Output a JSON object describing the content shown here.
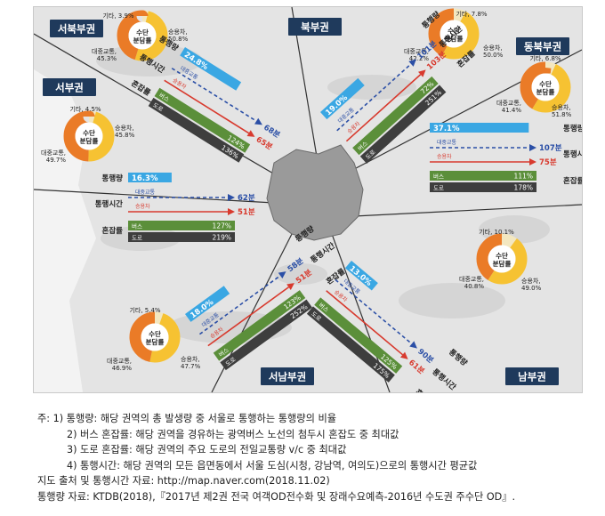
{
  "regions": {
    "northwest": {
      "name": "서북부권",
      "mode_share": {
        "center": "수단\n분담률",
        "car": "승용차,\n50.8%",
        "transit": "대중교통,\n45.3%",
        "other": "기타, 3.9%",
        "car_pct": 50.8,
        "transit_pct": 45.3,
        "other_pct": 3.9
      },
      "commute_label": "통행량",
      "commute_share": "24.8%",
      "commute_pct": 24.8,
      "time_label": "통행시간",
      "transit_label": "대중교통",
      "transit_time": "68분",
      "car_label": "승용차",
      "car_time": "65분",
      "congestion_label": "혼잡률",
      "bus_label": "버스",
      "bus_value": "124%",
      "road_label": "도로",
      "road_value": "136%"
    },
    "north": {
      "name": "북부권",
      "mode_share": {
        "center": "수단\n분담률",
        "car": "승용차,\n50.0%",
        "transit": "대중교통,\n42.2%",
        "other": "기타, 7.8%",
        "car_pct": 50.0,
        "transit_pct": 42.2,
        "other_pct": 7.8
      },
      "commute_label": "통행량",
      "commute_share": "19.0%",
      "commute_pct": 19.0,
      "time_label": "통행시간",
      "transit_label": "대중교통",
      "transit_time": "101분",
      "car_label": "승용차",
      "car_time": "103분",
      "congestion_label": "혼잡률",
      "bus_label": "버스",
      "bus_value": "72%",
      "road_label": "도로",
      "road_value": "251%"
    },
    "northeast": {
      "name": "동북부권",
      "mode_share": {
        "center": "수단\n분담률",
        "car": "승용차,\n51.8%",
        "transit": "대중교통,\n41.4%",
        "other": "기타, 6.8%",
        "car_pct": 51.8,
        "transit_pct": 41.4,
        "other_pct": 6.8
      },
      "commute_label": "통행량",
      "commute_share": "37.1%",
      "commute_pct": 37.1,
      "time_label": "통행시간",
      "transit_label": "대중교통",
      "transit_time": "107분",
      "car_label": "승용차",
      "car_time": "75분",
      "congestion_label": "혼잡률",
      "bus_label": "버스",
      "bus_value": "111%",
      "road_label": "도로",
      "road_value": "178%"
    },
    "west": {
      "name": "서부권",
      "mode_share": {
        "center": "수단\n분담률",
        "car": "승용차,\n45.8%",
        "transit": "대중교통,\n49.7%",
        "other": "기타, 4.5%",
        "car_pct": 45.8,
        "transit_pct": 49.7,
        "other_pct": 4.5
      },
      "commute_label": "통행량",
      "commute_share": "16.3%",
      "commute_pct": 16.3,
      "time_label": "통행시간",
      "transit_label": "대중교통",
      "transit_time": "62분",
      "car_label": "승용차",
      "car_time": "51분",
      "congestion_label": "혼잡률",
      "bus_label": "버스",
      "bus_value": "127%",
      "road_label": "도로",
      "road_value": "219%"
    },
    "southwest": {
      "name": "서남부권",
      "mode_share": {
        "center": "수단\n분담률",
        "car": "승용차,\n47.7%",
        "transit": "대중교통,\n46.9%",
        "other": "기타, 5.4%",
        "car_pct": 47.7,
        "transit_pct": 46.9,
        "other_pct": 5.4
      },
      "commute_label": "통행량",
      "commute_share": "18.0%",
      "commute_pct": 18.0,
      "time_label": "통행시간",
      "transit_label": "대중교통",
      "transit_time": "58분",
      "car_label": "승용차",
      "car_time": "51분",
      "congestion_label": "혼잡률",
      "bus_label": "버스",
      "bus_value": "123%",
      "road_label": "도로",
      "road_value": "252%"
    },
    "south": {
      "name": "남부권",
      "mode_share": {
        "center": "수단\n분담률",
        "car": "승용차,\n49.0%",
        "transit": "대중교통,\n40.8%",
        "other": "기타, 10.1%",
        "car_pct": 49.0,
        "transit_pct": 40.8,
        "other_pct": 10.1
      },
      "commute_label": "통행량",
      "commute_share": "13.0%",
      "commute_pct": 13.0,
      "time_label": "통행시간",
      "transit_label": "대중교통",
      "transit_time": "90분",
      "car_label": "승용차",
      "car_time": "61분",
      "congestion_label": "혼잡률",
      "bus_label": "버스",
      "bus_value": "125%",
      "road_label": "도로",
      "road_value": "175%"
    }
  },
  "colors": {
    "car": "#f6c232",
    "transit": "#ea7b27",
    "other": "#f3e7c0",
    "commute": "#3aa7e3",
    "transit_arrow": "#2b4fa6",
    "car_arrow": "#d83a2e",
    "bus_bar": "#5b8f3a",
    "road_bar": "#3e3e3e",
    "label_box": "#1f3a5c"
  },
  "notes": [
    "주: 1) 통행량: 해당 권역의 총 발생량 중 서울로 통행하는 통행량의 비율",
    "2) 버스 혼잡률: 해당 권역을 경유하는 광역버스 노선의 첨두시 혼잡도 중 최대값",
    "3) 도로 혼잡률: 해당 권역의 주요 도로의 전일교통량 v/c 중 최대값",
    "4) 통행시간: 해당 권역의 모든 읍면동에서 서울 도심(시청, 강남역, 여의도)으로의 통행시간 평균값",
    "지도 출처 및 통행시간 자료: http://map.naver.com(2018.11.02)",
    "통행량 자료: KTDB(2018),『2017년 제2권 전국 여객OD전수화 및 장래수요예측-2016년 수도권 주수단 OD』."
  ]
}
